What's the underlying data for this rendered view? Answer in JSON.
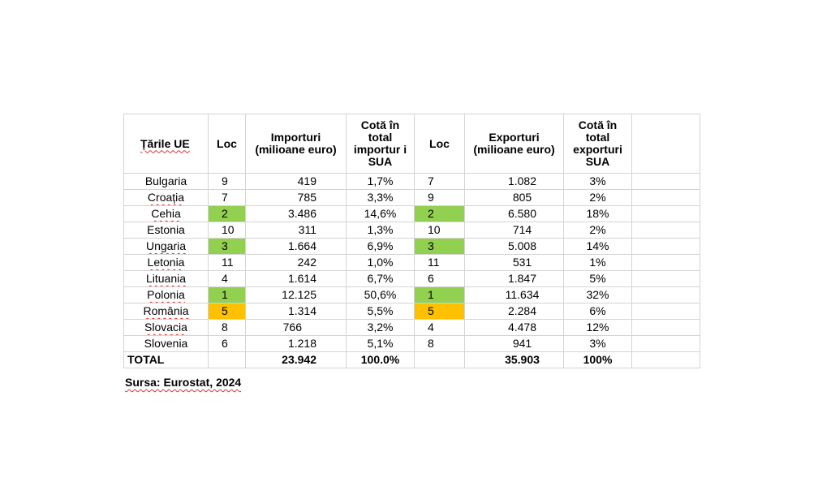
{
  "headers": {
    "country": "Țările UE",
    "loc1": "Loc",
    "imports": "Importuri (milioane euro)",
    "imp_share": "Cotă în total importur i SUA",
    "loc2": "Loc",
    "exports": "Exporturi (milioane euro)",
    "exp_share": "Cotă în total exporturi SUA",
    "extra": ""
  },
  "rows": [
    {
      "country": "Bulgaria",
      "imp_rank": "9",
      "imports": "419",
      "imp_share": "1,7%",
      "exp_rank": "7",
      "exports": "1.082",
      "exp_share": "3%"
    },
    {
      "country": "Croația",
      "imp_rank": "7",
      "imports": "785",
      "imp_share": "3,3%",
      "exp_rank": "9",
      "exports": "805",
      "exp_share": "2%"
    },
    {
      "country": "Cehia",
      "imp_rank": "2",
      "imports": "3.486",
      "imp_share": "14,6%",
      "exp_rank": "2",
      "exports": "6.580",
      "exp_share": "18%"
    },
    {
      "country": "Estonia",
      "imp_rank": "10",
      "imports": "311",
      "imp_share": "1,3%",
      "exp_rank": "10",
      "exports": "714",
      "exp_share": "2%"
    },
    {
      "country": "Ungaria",
      "imp_rank": "3",
      "imports": "1.664",
      "imp_share": "6,9%",
      "exp_rank": "3",
      "exports": "5.008",
      "exp_share": "14%"
    },
    {
      "country": "Letonia",
      "imp_rank": "11",
      "imports": "242",
      "imp_share": "1,0%",
      "exp_rank": "11",
      "exports": "531",
      "exp_share": "1%"
    },
    {
      "country": "Lituania",
      "imp_rank": "4",
      "imports": "1.614",
      "imp_share": "6,7%",
      "exp_rank": "6",
      "exports": "1.847",
      "exp_share": "5%"
    },
    {
      "country": "Polonia",
      "imp_rank": "1",
      "imports": "12.125",
      "imp_share": "50,6%",
      "exp_rank": "1",
      "exports": "11.634",
      "exp_share": "32%"
    },
    {
      "country": "România",
      "imp_rank": "5",
      "imports": "1.314",
      "imp_share": "5,5%",
      "exp_rank": "5",
      "exports": "2.284",
      "exp_share": "6%"
    },
    {
      "country": "Slovacia",
      "imp_rank": "8",
      "imports": "766",
      "imp_share": "3,2%",
      "exp_rank": "4",
      "exports": "4.478",
      "exp_share": "12%"
    },
    {
      "country": "Slovenia",
      "imp_rank": "6",
      "imports": "1.218",
      "imp_share": "5,1%",
      "exp_rank": "8",
      "exports": "941",
      "exp_share": "3%"
    }
  ],
  "total": {
    "label": "TOTAL",
    "imports": "23.942",
    "imp_share": "100.0%",
    "exports": "35.903",
    "exp_share": "100%"
  },
  "source": "Sursa: Eurostat, 2024",
  "colors": {
    "top_rank": "#92d050",
    "romania_rank": "#ffc000"
  }
}
